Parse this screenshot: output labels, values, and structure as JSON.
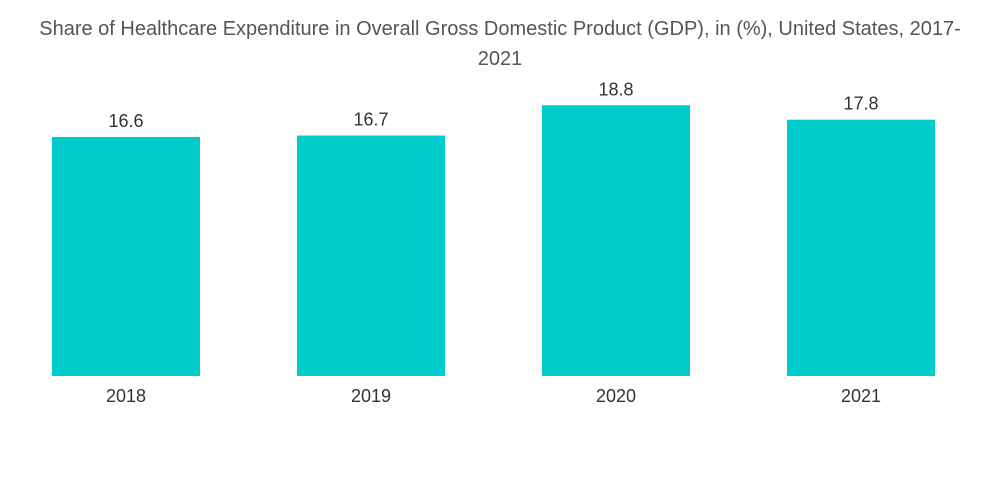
{
  "chart_data": {
    "type": "bar",
    "title": "Share of Healthcare Expenditure in Overall Gross Domestic Product (GDP), in (%), United States, 2017-2021",
    "categories": [
      "2018",
      "2019",
      "2020",
      "2021"
    ],
    "values": [
      16.6,
      16.7,
      18.8,
      17.8
    ],
    "value_labels": [
      "16.6",
      "16.7",
      "18.8",
      "17.8"
    ],
    "xlabel": "",
    "ylabel": "",
    "ylim": [
      0,
      20
    ],
    "grid": false,
    "legend": "none",
    "colors": {
      "bar": "#00CCCC",
      "title": "#555555",
      "label": "#333333"
    }
  }
}
